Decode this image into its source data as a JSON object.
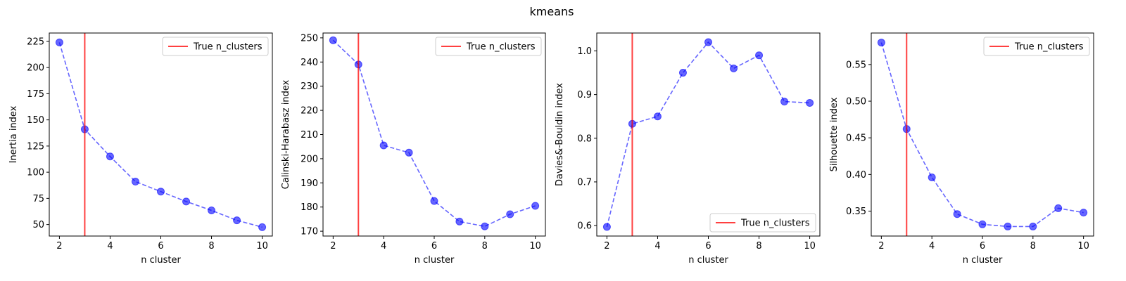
{
  "figure": {
    "title": "kmeans"
  },
  "colors": {
    "series": "#0000ff",
    "true_line": "#ff0000"
  },
  "chart_data": [
    {
      "type": "line",
      "xlabel": "n cluster",
      "ylabel": "Inertia index",
      "x": [
        2,
        3,
        4,
        5,
        6,
        7,
        8,
        9,
        10
      ],
      "y": [
        224,
        141,
        115,
        91,
        81.5,
        72,
        63.5,
        54,
        47.5
      ],
      "xlim": [
        1.6,
        10.4
      ],
      "ylim": [
        39,
        233
      ],
      "xticks": [
        2,
        4,
        6,
        8,
        10
      ],
      "xtick_labels": [
        "2",
        "4",
        "6",
        "8",
        "10"
      ],
      "yticks": [
        50,
        75,
        100,
        125,
        150,
        175,
        200,
        225
      ],
      "ytick_labels": [
        "50",
        "75",
        "100",
        "125",
        "150",
        "175",
        "200",
        "225"
      ],
      "true_n_clusters": 3,
      "legend": {
        "label": "True n_clusters",
        "position": "upper right"
      }
    },
    {
      "type": "line",
      "xlabel": "n cluster",
      "ylabel": "Calinski-Harabasz index",
      "x": [
        2,
        3,
        4,
        5,
        6,
        7,
        8,
        9,
        10
      ],
      "y": [
        249,
        239,
        205.5,
        202.5,
        182.5,
        174,
        172,
        177,
        180.5
      ],
      "xlim": [
        1.6,
        10.4
      ],
      "ylim": [
        168,
        252
      ],
      "xticks": [
        2,
        4,
        6,
        8,
        10
      ],
      "xtick_labels": [
        "2",
        "4",
        "6",
        "8",
        "10"
      ],
      "yticks": [
        170,
        180,
        190,
        200,
        210,
        220,
        230,
        240,
        250
      ],
      "ytick_labels": [
        "170",
        "180",
        "190",
        "200",
        "210",
        "220",
        "230",
        "240",
        "250"
      ],
      "true_n_clusters": 3,
      "legend": {
        "label": "True n_clusters",
        "position": "upper right"
      }
    },
    {
      "type": "line",
      "xlabel": "n cluster",
      "ylabel": "Davies&-Bouldin index",
      "x": [
        2,
        3,
        4,
        5,
        6,
        7,
        8,
        9,
        10
      ],
      "y": [
        0.597,
        0.833,
        0.85,
        0.95,
        1.02,
        0.96,
        0.99,
        0.884,
        0.881
      ],
      "xlim": [
        1.6,
        10.4
      ],
      "ylim": [
        0.576,
        1.041
      ],
      "xticks": [
        2,
        4,
        6,
        8,
        10
      ],
      "xtick_labels": [
        "2",
        "4",
        "6",
        "8",
        "10"
      ],
      "yticks": [
        0.6,
        0.7,
        0.8,
        0.9,
        1.0
      ],
      "ytick_labels": [
        "0.6",
        "0.7",
        "0.8",
        "0.9",
        "1.0"
      ],
      "true_n_clusters": 3,
      "legend": {
        "label": "True n_clusters",
        "position": "lower right"
      }
    },
    {
      "type": "line",
      "xlabel": "n cluster",
      "ylabel": "Silhouette index",
      "x": [
        2,
        3,
        4,
        5,
        6,
        7,
        8,
        9,
        10
      ],
      "y": [
        0.58,
        0.462,
        0.396,
        0.346,
        0.332,
        0.329,
        0.329,
        0.354,
        0.348
      ],
      "xlim": [
        1.6,
        10.4
      ],
      "ylim": [
        0.316,
        0.593
      ],
      "xticks": [
        2,
        4,
        6,
        8,
        10
      ],
      "xtick_labels": [
        "2",
        "4",
        "6",
        "8",
        "10"
      ],
      "yticks": [
        0.35,
        0.4,
        0.45,
        0.5,
        0.55
      ],
      "ytick_labels": [
        "0.35",
        "0.40",
        "0.45",
        "0.50",
        "0.55"
      ],
      "true_n_clusters": 3,
      "legend": {
        "label": "True n_clusters",
        "position": "upper right"
      }
    }
  ]
}
